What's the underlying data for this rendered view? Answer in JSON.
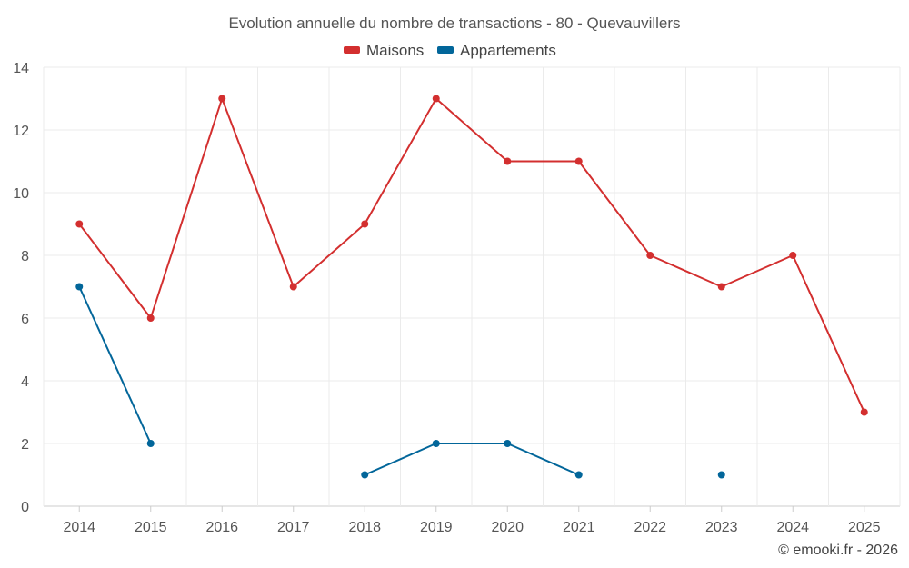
{
  "chart_data": {
    "type": "line",
    "title": "Evolution annuelle du nombre de transactions - 80 - Quevauvillers",
    "x": [
      "2014",
      "2015",
      "2016",
      "2017",
      "2018",
      "2019",
      "2020",
      "2021",
      "2022",
      "2023",
      "2024",
      "2025"
    ],
    "ylim": [
      0,
      14
    ],
    "yticks": [
      0,
      2,
      4,
      6,
      8,
      10,
      12,
      14
    ],
    "grid": true,
    "legend_position": "top-center",
    "series": [
      {
        "name": "Maisons",
        "color": "#d32f2f",
        "values": [
          9,
          6,
          13,
          7,
          9,
          13,
          11,
          11,
          8,
          7,
          8,
          3
        ]
      },
      {
        "name": "Appartements",
        "color": "#02669a",
        "values": [
          7,
          2,
          null,
          null,
          1,
          2,
          2,
          1,
          null,
          1,
          null,
          null
        ]
      }
    ]
  },
  "credit": "© emooki.fr - 2026"
}
